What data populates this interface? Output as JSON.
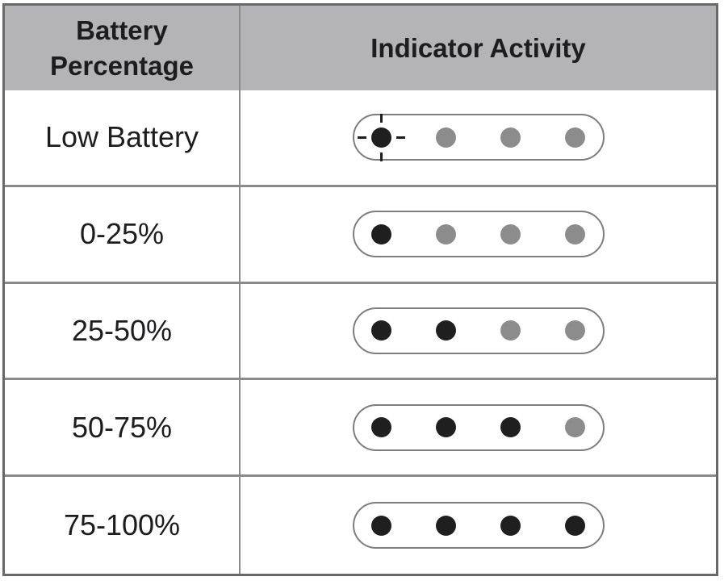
{
  "table": {
    "headers": [
      {
        "label": "Battery Percentage"
      },
      {
        "label": "Indicator Activity"
      }
    ],
    "rows": [
      {
        "label": "Low Battery",
        "dots": [
          "on-blinking",
          "off",
          "off",
          "off"
        ]
      },
      {
        "label": "0-25%",
        "dots": [
          "on",
          "off",
          "off",
          "off"
        ]
      },
      {
        "label": "25-50%",
        "dots": [
          "on",
          "on",
          "off",
          "off"
        ]
      },
      {
        "label": "50-75%",
        "dots": [
          "on",
          "on",
          "on",
          "off"
        ]
      },
      {
        "label": "75-100%",
        "dots": [
          "on",
          "on",
          "on",
          "on"
        ]
      }
    ]
  },
  "colors": {
    "header_bg": "#b4b4b6",
    "grid_line": "#8a8a8a",
    "outer_border": "#696969",
    "pill_border": "#7d7d7d",
    "dot_on": "#1f1f1f",
    "dot_off": "#8c8c8c",
    "text": "#1d1d1f"
  }
}
